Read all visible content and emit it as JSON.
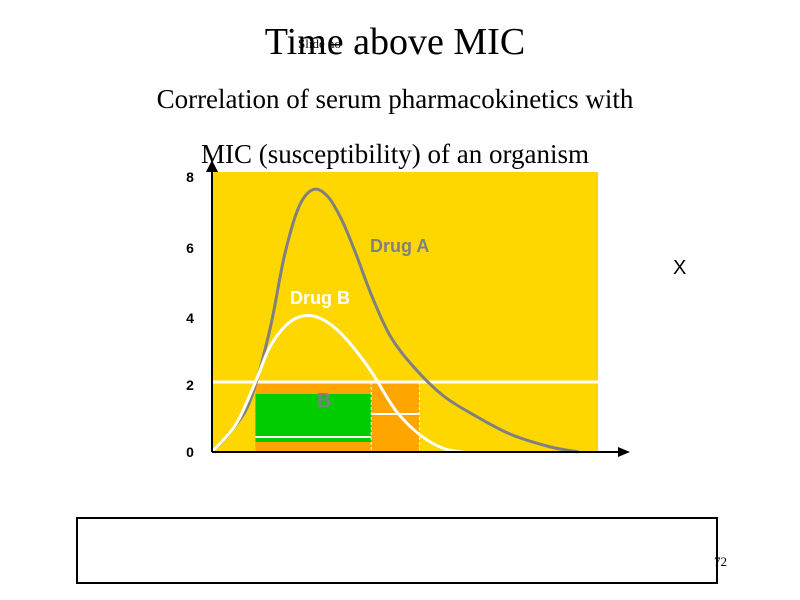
{
  "slide": {
    "title": "Time above MIC",
    "subtitle_line1": "Correlation of serum pharmacokinetics with",
    "subtitle_line2": "MIC (susceptibility) of an organism",
    "side_mark": "X",
    "footer_label": "Slide no",
    "page_number": "72"
  },
  "colors": {
    "plot_background": "#FFD700",
    "curve_a": "#808080",
    "curve_b": "#FFFFFF",
    "mic_line": "#FFFFFF",
    "time_above_mic_a": "#FFA500",
    "time_above_mic_b": "#00CC00",
    "axis": "#000000"
  },
  "chart_data": {
    "type": "line",
    "title": "",
    "xlabel": "",
    "ylabel": "",
    "ylim": [
      0,
      8
    ],
    "yticks": [
      "0",
      "2",
      "4",
      "6",
      "8"
    ],
    "grid": false,
    "x_axis_labeled": false,
    "mic_threshold": 2,
    "series": [
      {
        "name": "Drug A",
        "x": [
          0,
          0.4,
          0.8,
          1.2,
          1.5,
          1.8,
          2.1,
          2.4,
          2.7,
          3.0,
          3.3,
          3.7,
          4.2,
          4.8,
          5.5,
          6.2,
          7.0,
          7.6
        ],
        "y": [
          0,
          0.6,
          1.5,
          3.5,
          5.6,
          7.0,
          7.5,
          7.3,
          6.6,
          5.6,
          4.5,
          3.3,
          2.4,
          1.6,
          1.0,
          0.5,
          0.15,
          0
        ]
      },
      {
        "name": "Drug B",
        "x": [
          0,
          0.5,
          0.9,
          1.2,
          1.6,
          2.0,
          2.4,
          2.8,
          3.3,
          3.8,
          4.3,
          4.8,
          5.2
        ],
        "y": [
          0,
          0.8,
          2.0,
          3.0,
          3.7,
          3.9,
          3.7,
          3.2,
          2.3,
          1.2,
          0.5,
          0.1,
          0
        ]
      }
    ],
    "time_above_mic": [
      {
        "series": "Drug A",
        "x_start": 0.9,
        "x_end": 4.3
      },
      {
        "series": "Drug B",
        "x_start": 0.9,
        "x_end": 3.3,
        "label": "B"
      }
    ]
  }
}
